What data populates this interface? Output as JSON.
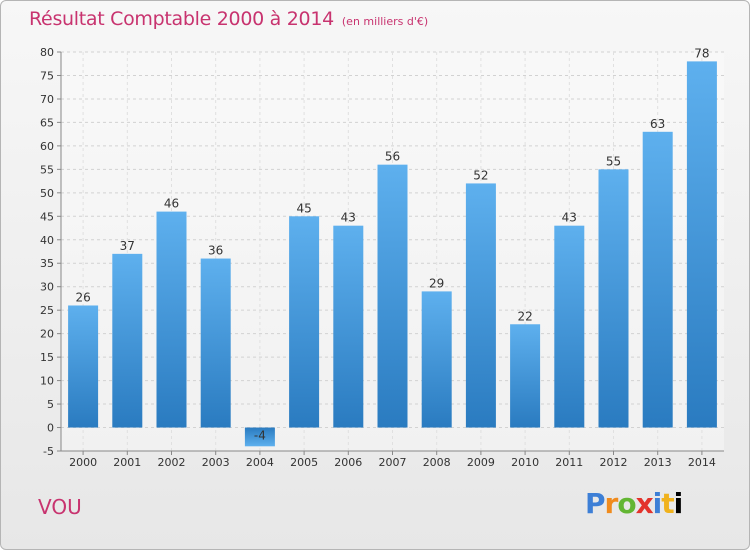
{
  "title": "Résultat Comptable 2000 à 2014",
  "subtitle": "(en milliers d'€)",
  "commune": "VOU",
  "brand": {
    "letters": [
      "P",
      "r",
      "o",
      "x",
      "i",
      "t",
      "i"
    ]
  },
  "chart_data": {
    "type": "bar",
    "categories": [
      "2000",
      "2001",
      "2002",
      "2003",
      "2004",
      "2005",
      "2006",
      "2007",
      "2008",
      "2009",
      "2010",
      "2011",
      "2012",
      "2013",
      "2014"
    ],
    "values": [
      26,
      37,
      46,
      36,
      -4,
      45,
      43,
      56,
      29,
      52,
      22,
      43,
      55,
      63,
      78
    ],
    "ylim": [
      -5,
      80
    ],
    "yticks": [
      -5,
      0,
      5,
      10,
      15,
      20,
      25,
      30,
      35,
      40,
      45,
      50,
      55,
      60,
      65,
      70,
      75,
      80
    ],
    "grid": true,
    "bar_color": "#3a8fd6"
  }
}
